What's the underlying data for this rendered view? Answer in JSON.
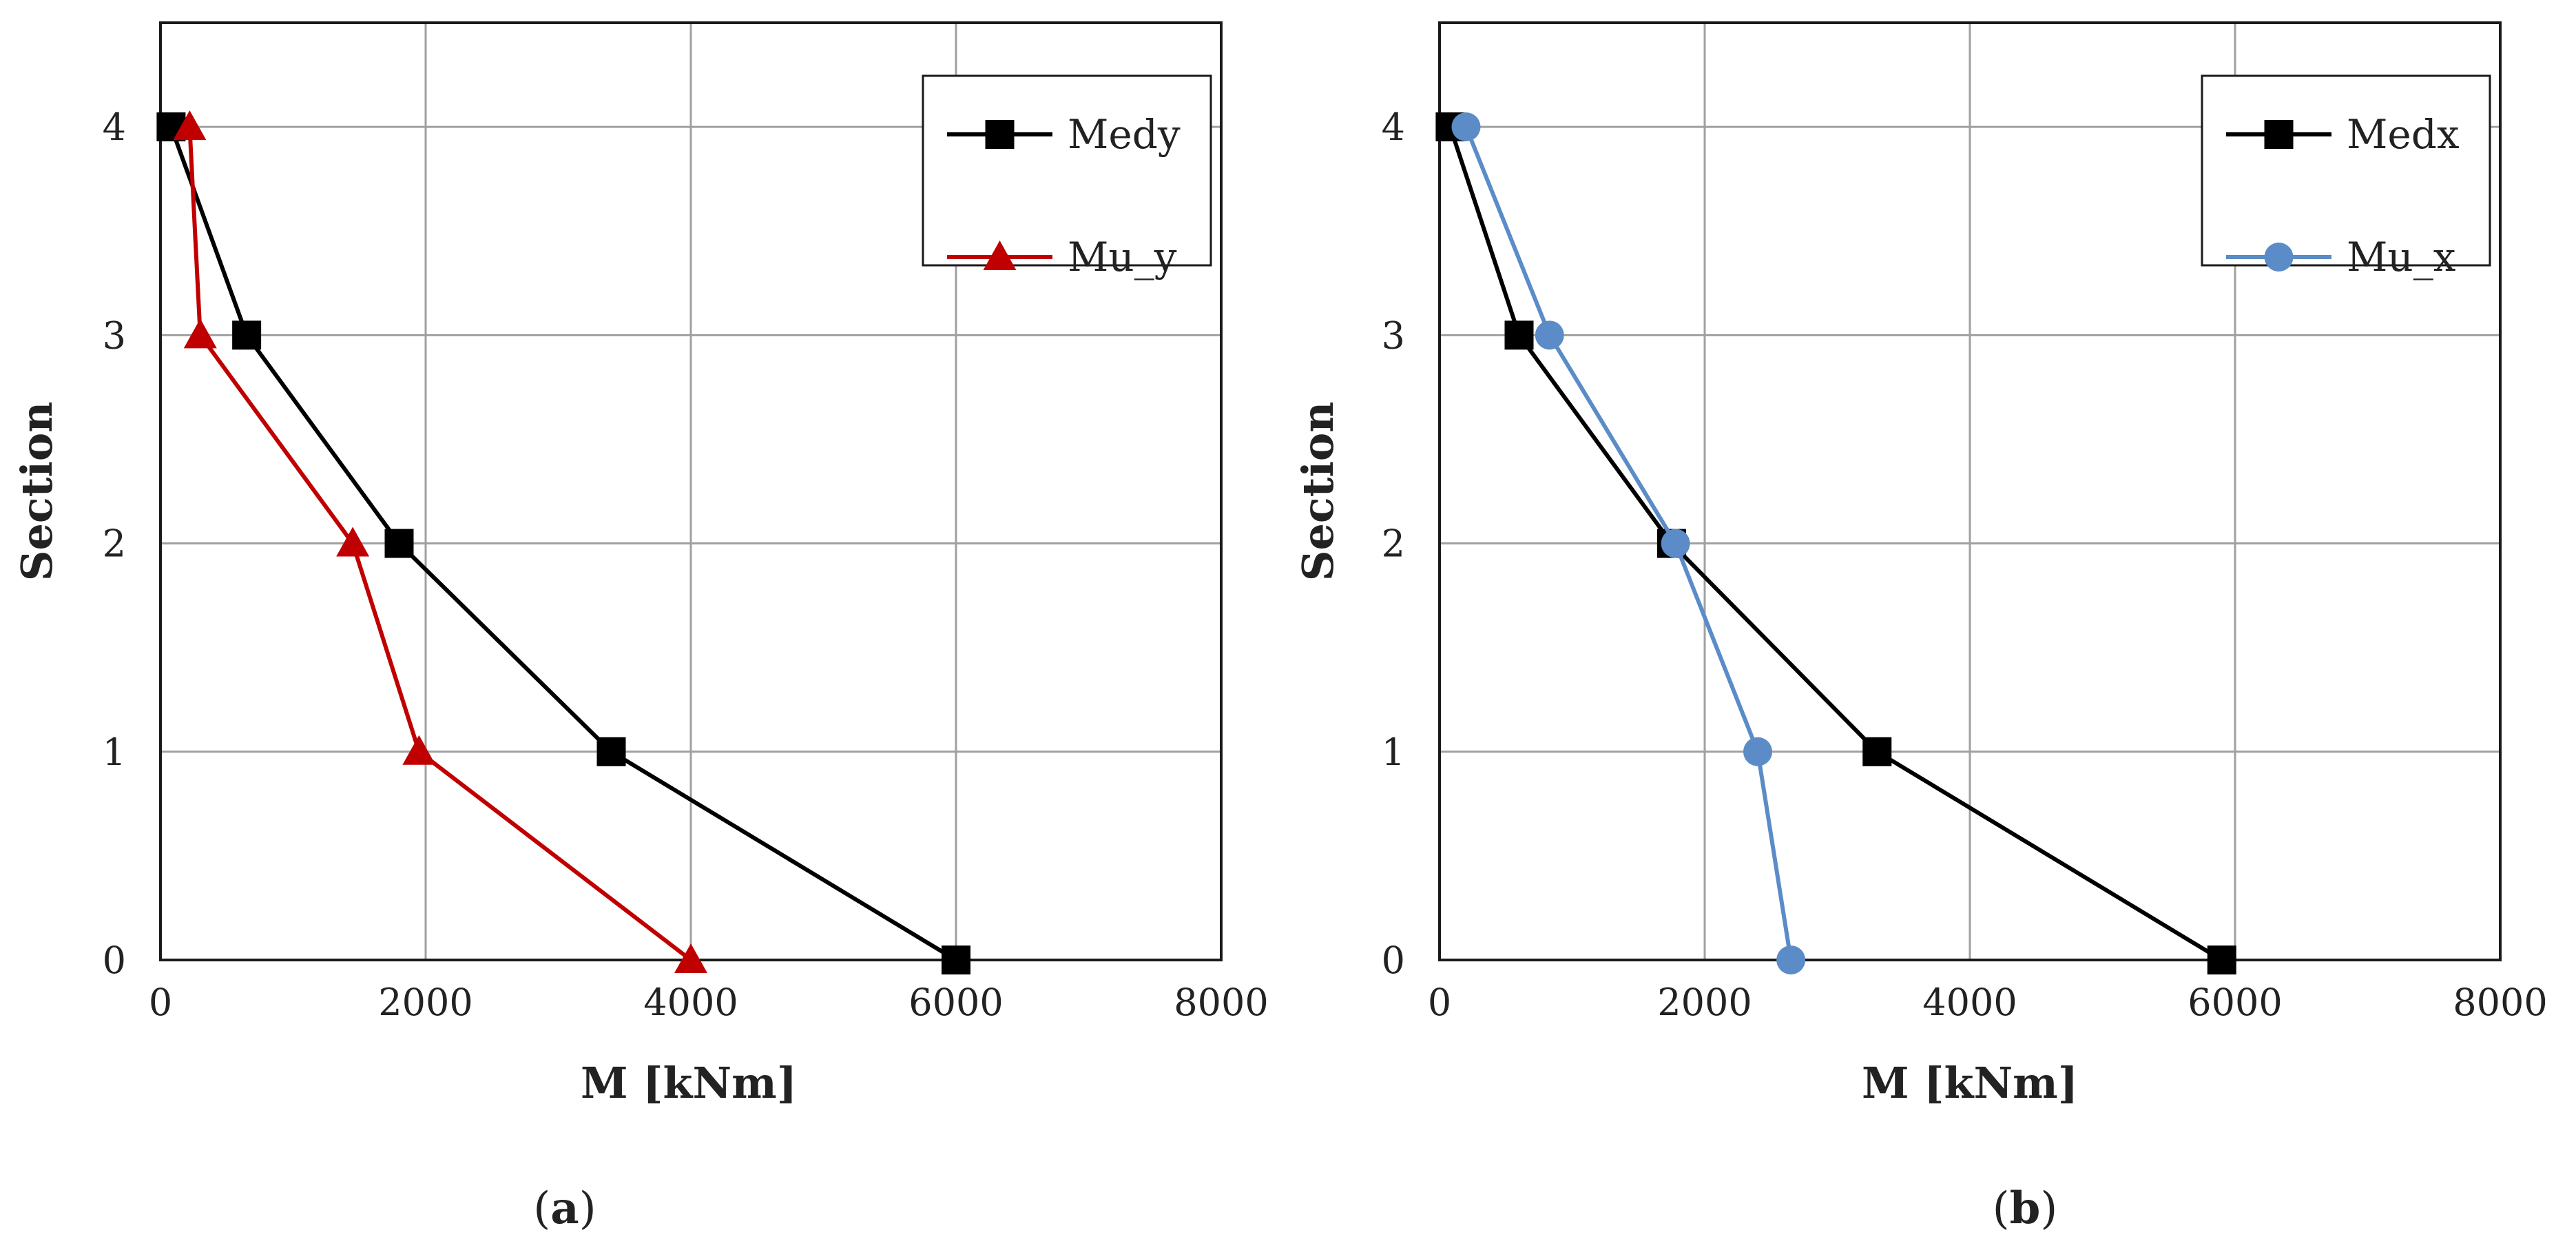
{
  "chart_data": [
    {
      "type": "line",
      "panel_label": {
        "open": "(",
        "letter": "a",
        "close": ")"
      },
      "xlabel": "M [kNm]",
      "ylabel": "Section",
      "xlim": [
        0,
        8000
      ],
      "ylim": [
        0,
        4.5
      ],
      "xticks": [
        0,
        2000,
        4000,
        6000,
        8000
      ],
      "yticks": [
        0,
        1,
        2,
        3,
        4
      ],
      "xtick_labels": [
        "0",
        "2000",
        "4000",
        "6000",
        "8000"
      ],
      "ytick_labels": [
        "0",
        "1",
        "2",
        "3",
        "4"
      ],
      "grid": true,
      "legend_position": "top-right",
      "series": [
        {
          "name": "Medy",
          "color": "#000000",
          "marker": "square",
          "x": [
            6000,
            3400,
            1800,
            650,
            80
          ],
          "y": [
            0,
            1,
            2,
            3,
            4
          ]
        },
        {
          "name": "Mu_y",
          "color": "#c00000",
          "marker": "triangle",
          "x": [
            4000,
            1950,
            1450,
            300,
            220
          ],
          "y": [
            0,
            1,
            2,
            3,
            4
          ]
        }
      ]
    },
    {
      "type": "line",
      "panel_label": {
        "open": "(",
        "letter": "b",
        "close": ")"
      },
      "xlabel": "M [kNm]",
      "ylabel": "Section",
      "xlim": [
        0,
        8000
      ],
      "ylim": [
        0,
        4.5
      ],
      "xticks": [
        0,
        2000,
        4000,
        6000,
        8000
      ],
      "yticks": [
        0,
        1,
        2,
        3,
        4
      ],
      "xtick_labels": [
        "0",
        "2000",
        "4000",
        "6000",
        "8000"
      ],
      "ytick_labels": [
        "0",
        "1",
        "2",
        "3",
        "4"
      ],
      "grid": true,
      "legend_position": "top-right",
      "series": [
        {
          "name": "Medx",
          "color": "#000000",
          "marker": "square",
          "x": [
            5900,
            3300,
            1750,
            600,
            80
          ],
          "y": [
            0,
            1,
            2,
            3,
            4
          ]
        },
        {
          "name": "Mu_x",
          "color": "#5b8cc8",
          "marker": "circle",
          "x": [
            2650,
            2400,
            1780,
            830,
            200
          ],
          "y": [
            0,
            1,
            2,
            3,
            4
          ]
        }
      ]
    }
  ]
}
